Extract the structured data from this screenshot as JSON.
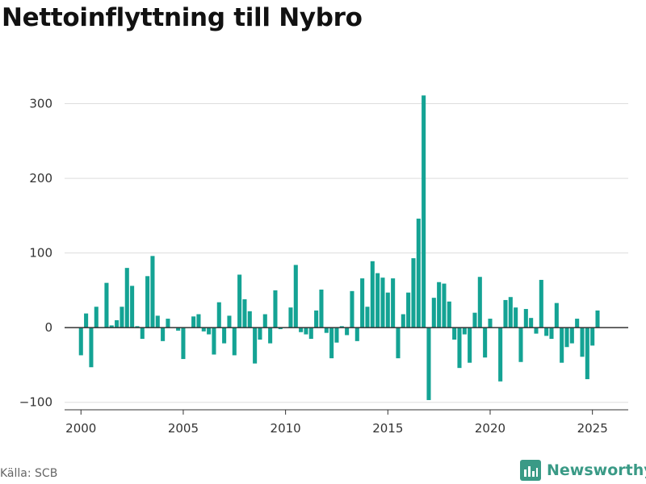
{
  "title": "Nettoinflyttning till Nybro",
  "source": "Källa: SCB",
  "logo_text": "Newsworthy",
  "colors": {
    "bar": "#14a394",
    "grid": "#dddddd",
    "zero_line": "#333333",
    "logo": "#3a9a86"
  },
  "chart_data": {
    "type": "bar",
    "grid": true,
    "ylim": [
      -110,
      320
    ],
    "yticks": [
      -100,
      0,
      100,
      200,
      300
    ],
    "ytick_labels": [
      "−100",
      "0",
      "100",
      "200",
      "300"
    ],
    "xlim": [
      1999.2,
      2026.75
    ],
    "xticks": [
      2000,
      2005,
      2010,
      2015,
      2020,
      2025
    ],
    "xtick_labels": [
      "2000",
      "2005",
      "2010",
      "2015",
      "2020",
      "2025"
    ],
    "x_start": 2000,
    "x_step": 0.25,
    "values": [
      -37,
      19,
      -53,
      28,
      0,
      60,
      3,
      10,
      28,
      80,
      56,
      2,
      -15,
      69,
      96,
      16,
      -18,
      12,
      0,
      -4,
      -42,
      0,
      15,
      18,
      -5,
      -9,
      -36,
      34,
      -21,
      16,
      -37,
      71,
      38,
      22,
      -48,
      -16,
      18,
      -21,
      50,
      -2,
      0,
      27,
      84,
      -6,
      -9,
      -15,
      23,
      51,
      -7,
      -41,
      -20,
      2,
      -10,
      49,
      -18,
      66,
      28,
      89,
      73,
      67,
      47,
      66,
      -41,
      18,
      47,
      93,
      146,
      311,
      -97,
      40,
      61,
      59,
      35,
      -16,
      -54,
      -9,
      -47,
      20,
      68,
      -40,
      12,
      0,
      -72,
      37,
      41,
      27,
      -46,
      25,
      13,
      -8,
      64,
      -11,
      -15,
      33,
      -47,
      -26,
      -21,
      12,
      -39,
      -69,
      -24,
      23
    ]
  }
}
